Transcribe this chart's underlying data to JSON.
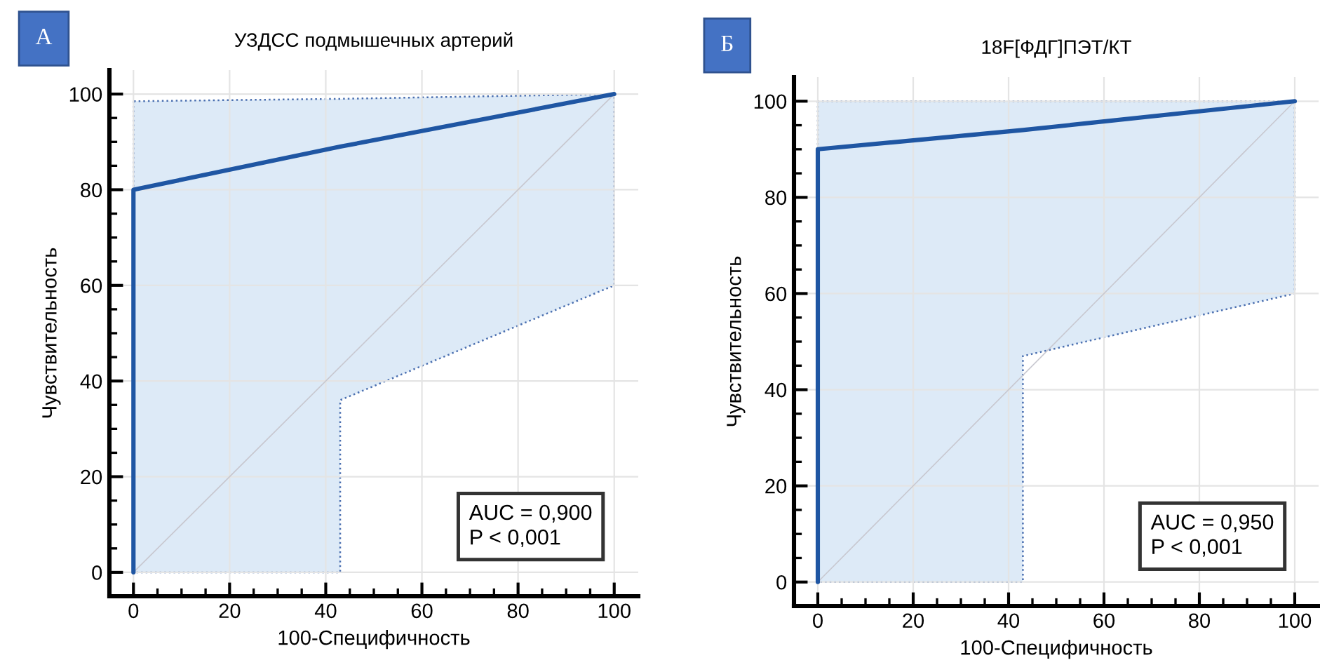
{
  "chart_data": [
    {
      "type": "line",
      "title": "УЗДСС подмышечных артерий",
      "xlabel": "100-Специфичность",
      "ylabel": "Чувствительность",
      "xlim": [
        -5,
        105
      ],
      "ylim": [
        -5,
        105
      ],
      "xticks": [
        0,
        {
          "value": 5,
          "label": null
        },
        {
          "value": 10,
          "label": null
        },
        {
          "value": 15,
          "label": null
        },
        20,
        {
          "value": 25,
          "label": null
        },
        {
          "value": 30,
          "label": null
        },
        {
          "value": 35,
          "label": null
        },
        40,
        {
          "value": 45,
          "label": null
        },
        {
          "value": 50,
          "label": null
        },
        {
          "value": 55,
          "label": null
        },
        60,
        {
          "value": 65,
          "label": null
        },
        {
          "value": 70,
          "label": null
        },
        {
          "value": 75,
          "label": null
        },
        80,
        {
          "value": 85,
          "label": null
        },
        {
          "value": 90,
          "label": null
        },
        {
          "value": 95,
          "label": null
        },
        100
      ],
      "yticks": [
        0,
        {
          "value": 5,
          "label": null
        },
        {
          "value": 10,
          "label": null
        },
        {
          "value": 15,
          "label": null
        },
        20,
        {
          "value": 25,
          "label": null
        },
        {
          "value": 30,
          "label": null
        },
        {
          "value": 35,
          "label": null
        },
        40,
        {
          "value": 45,
          "label": null
        },
        {
          "value": 50,
          "label": null
        },
        {
          "value": 55,
          "label": null
        },
        60,
        {
          "value": 65,
          "label": null
        },
        {
          "value": 70,
          "label": null
        },
        {
          "value": 75,
          "label": null
        },
        80,
        {
          "value": 85,
          "label": null
        },
        {
          "value": 90,
          "label": null
        },
        {
          "value": 95,
          "label": null
        },
        100
      ],
      "grid": true,
      "legend": false,
      "series": [
        {
          "color": "#c8c8d0",
          "x": [
            0,
            100
          ],
          "values": [
            0,
            100
          ]
        },
        {
          "color": "#1f56a3",
          "x": [
            0,
            0,
            43,
            43,
            100
          ],
          "values": [
            0,
            80,
            89,
            89,
            100
          ],
          "lower": [
            0,
            0,
            0,
            36,
            60
          ],
          "upper": [
            98.5,
            98.5,
            99,
            99,
            100
          ]
        }
      ],
      "annotations": [
        "А",
        "AUC = 0,900\nP < 0,001"
      ]
    },
    {
      "type": "line",
      "title": "18F[ФДГ]ПЭТ/КТ",
      "xlabel": "100-Специфичность",
      "ylabel": "Чувствительность",
      "xlim": [
        -5,
        105
      ],
      "ylim": [
        -5,
        105
      ],
      "xticks": [
        0,
        {
          "value": 5,
          "label": null
        },
        {
          "value": 10,
          "label": null
        },
        {
          "value": 15,
          "label": null
        },
        20,
        {
          "value": 25,
          "label": null
        },
        {
          "value": 30,
          "label": null
        },
        {
          "value": 35,
          "label": null
        },
        40,
        {
          "value": 45,
          "label": null
        },
        {
          "value": 50,
          "label": null
        },
        {
          "value": 55,
          "label": null
        },
        60,
        {
          "value": 65,
          "label": null
        },
        {
          "value": 70,
          "label": null
        },
        {
          "value": 75,
          "label": null
        },
        80,
        {
          "value": 85,
          "label": null
        },
        {
          "value": 90,
          "label": null
        },
        {
          "value": 95,
          "label": null
        },
        100
      ],
      "yticks": [
        0,
        {
          "value": 5,
          "label": null
        },
        {
          "value": 10,
          "label": null
        },
        {
          "value": 15,
          "label": null
        },
        20,
        {
          "value": 25,
          "label": null
        },
        {
          "value": 30,
          "label": null
        },
        {
          "value": 35,
          "label": null
        },
        40,
        {
          "value": 45,
          "label": null
        },
        {
          "value": 50,
          "label": null
        },
        {
          "value": 55,
          "label": null
        },
        60,
        {
          "value": 65,
          "label": null
        },
        {
          "value": 70,
          "label": null
        },
        {
          "value": 75,
          "label": null
        },
        80,
        {
          "value": 85,
          "label": null
        },
        {
          "value": 90,
          "label": null
        },
        {
          "value": 95,
          "label": null
        },
        100
      ],
      "grid": true,
      "legend": false,
      "series": [
        {
          "color": "#c8c8d0",
          "x": [
            0,
            100
          ],
          "values": [
            0,
            100
          ]
        },
        {
          "color": "#1f56a3",
          "x": [
            0,
            0,
            43,
            43,
            100
          ],
          "values": [
            0,
            90,
            94,
            94,
            100
          ],
          "lower": [
            0,
            0,
            0,
            47,
            60
          ],
          "upper": [
            100,
            100,
            100,
            100,
            100
          ]
        }
      ],
      "annotations": [
        "Б",
        "AUC = 0,950\nP < 0,001"
      ]
    }
  ]
}
